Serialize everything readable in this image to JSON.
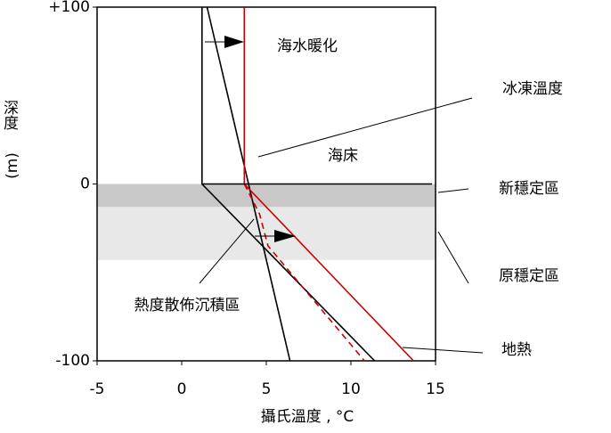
{
  "chart_data": {
    "type": "line",
    "xlabel": "攝氏溫度 , °C",
    "ylabel": "深度",
    "ylabel_unit": "(m)",
    "xlim": [
      -5,
      15
    ],
    "ylim": [
      -100,
      100
    ],
    "xticks": [
      -5,
      0,
      5,
      10,
      15
    ],
    "yticks": [
      -100,
      0,
      {
        "value": 100,
        "label": "+100"
      }
    ],
    "bands": [
      {
        "name": "新穩定區",
        "from": 0,
        "to": -13,
        "color": "#c8c8c8"
      },
      {
        "name": "原穩定區",
        "from": -13,
        "to": -43,
        "color": "#e8e8e8"
      }
    ],
    "series": [
      {
        "name": "冰凍溫度",
        "color": "#000000",
        "x": [
          1.5,
          6.4
        ],
        "values": [
          100,
          -100
        ]
      },
      {
        "color": "#000000",
        "x": [
          1.2,
          1.2,
          11.4
        ],
        "values": [
          100,
          0,
          -100
        ]
      },
      {
        "name": "地熱",
        "color": "#cc0000",
        "x": [
          3.7,
          3.7,
          13.7
        ],
        "values": [
          100,
          0,
          -100
        ]
      },
      {
        "color": "#cc0000",
        "dash": true,
        "x": [
          3.7,
          4.6,
          5.1,
          10.8
        ],
        "values": [
          0,
          -17,
          -35,
          -100
        ]
      }
    ],
    "annotations": [
      "海水暖化",
      "海床",
      "熱度散佈沉積區"
    ]
  }
}
